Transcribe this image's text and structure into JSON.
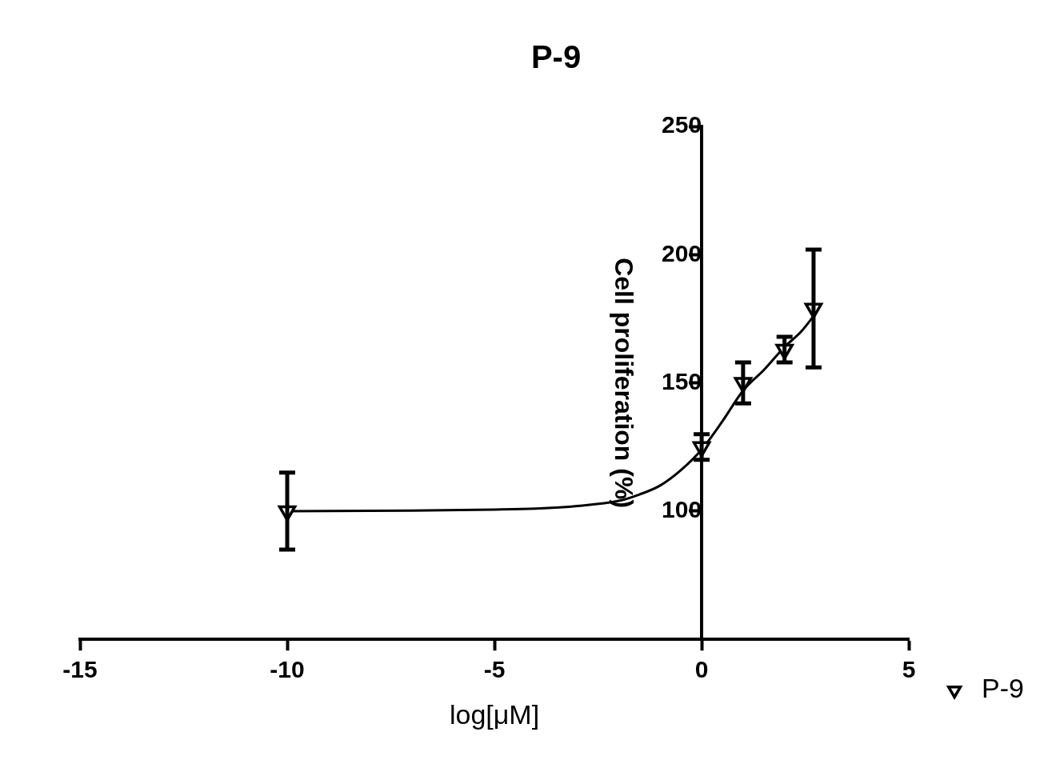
{
  "chart_data": {
    "type": "scatter",
    "title": "P-9",
    "x_label": "log[μM]",
    "y_label": "Cell proliferation (%)",
    "xlim": [
      -15,
      5
    ],
    "xticks": [
      -15,
      -10,
      -5,
      0,
      5
    ],
    "ylim": [
      50,
      250
    ],
    "yticks": [
      100,
      150,
      200,
      250
    ],
    "grid": false,
    "legend": "lower right",
    "series": [
      {
        "name": "P-9",
        "color": "#000000",
        "marker": "triangle-down",
        "x": [
          -10,
          0,
          1,
          2,
          2.7
        ],
        "values": [
          100,
          125,
          150,
          163,
          179
        ],
        "errors": [
          15,
          5,
          8,
          5,
          23
        ],
        "curve": {
          "x": [
            -10,
            -7,
            -5,
            -4,
            -3,
            -2,
            -1.5,
            -1,
            -0.5,
            0,
            0.5,
            1,
            1.5,
            2,
            2.4,
            2.7
          ],
          "values": [
            100,
            100.2,
            100.6,
            101,
            102,
            104,
            106.5,
            110,
            116,
            124,
            135,
            147,
            155,
            164,
            170,
            176
          ],
          "line_style": "solid"
        }
      }
    ]
  }
}
